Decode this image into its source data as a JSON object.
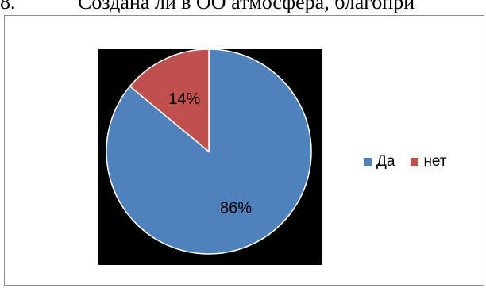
{
  "heading": {
    "number": "8.",
    "text": "Создана ли в ОО атмосфера, благопри"
  },
  "chart_data": {
    "type": "pie",
    "categories": [
      "Да",
      "нет"
    ],
    "values": [
      86,
      14
    ],
    "labels": [
      "86%",
      "14%"
    ],
    "colors": [
      "#4f81bd",
      "#c0504d"
    ],
    "plot_background": "#000000",
    "legend_position": "right"
  }
}
